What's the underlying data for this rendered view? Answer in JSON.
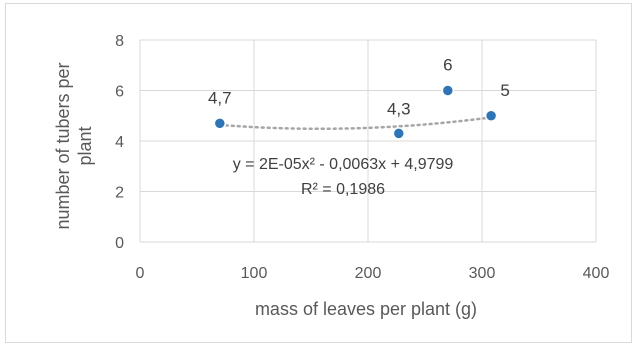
{
  "chart_data": {
    "type": "scatter",
    "xlabel": "mass of leaves per plant (g)",
    "ylabel": "number of tubers per plant",
    "xlim": [
      0,
      400
    ],
    "ylim": [
      0,
      8
    ],
    "x_ticks": [
      0,
      100,
      200,
      300,
      400
    ],
    "y_ticks": [
      0,
      2,
      4,
      6,
      8
    ],
    "x_tick_labels": [
      "0",
      "100",
      "200",
      "300",
      "400"
    ],
    "y_tick_labels": [
      "0",
      "2",
      "4",
      "6",
      "8"
    ],
    "grid": true,
    "legend": "none",
    "marker_color": "#2e75b6",
    "trendline_color": "#a6a6a6",
    "series": [
      {
        "points": [
          {
            "x": 70,
            "y": 4.7,
            "label": "4,7"
          },
          {
            "x": 227,
            "y": 4.3,
            "label": "4,3"
          },
          {
            "x": 270,
            "y": 6.0,
            "label": "6"
          },
          {
            "x": 308,
            "y": 5.0,
            "label": "5"
          }
        ]
      }
    ],
    "trendline": {
      "type": "polynomial",
      "coefficients": [
        2e-05,
        -0.0063,
        4.9799
      ],
      "x_range": [
        70,
        308
      ],
      "equation": "y = 2E-05x² - 0,0063x + 4,9799",
      "r_squared": "R² = 0,1986"
    }
  }
}
